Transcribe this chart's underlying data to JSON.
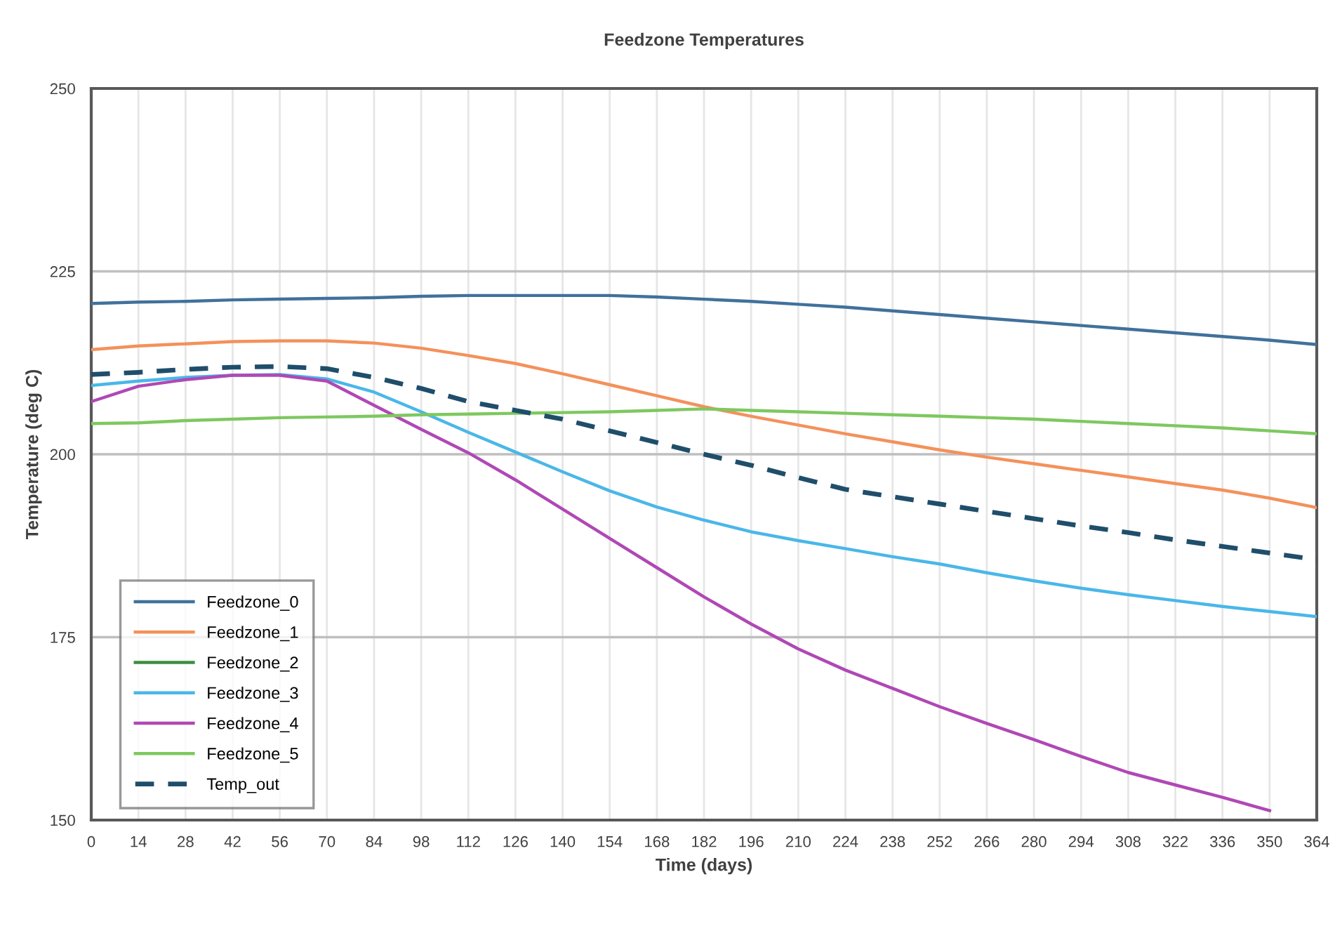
{
  "chart_data": {
    "type": "line",
    "title": "Feedzone Temperatures",
    "xlabel": "Time (days)",
    "ylabel": "Temperature (deg C)",
    "x": [
      0,
      14,
      28,
      42,
      56,
      70,
      84,
      98,
      112,
      126,
      140,
      154,
      168,
      182,
      196,
      210,
      224,
      238,
      252,
      266,
      280,
      294,
      308,
      322,
      336,
      350,
      364
    ],
    "xlim": [
      0,
      364
    ],
    "xticks": [
      0,
      14,
      28,
      42,
      56,
      70,
      84,
      98,
      112,
      126,
      140,
      154,
      168,
      182,
      196,
      210,
      224,
      238,
      252,
      266,
      280,
      294,
      308,
      322,
      336,
      350,
      364
    ],
    "ylim": [
      150,
      250
    ],
    "yticks": [
      150,
      175,
      200,
      225,
      250
    ],
    "grid": true,
    "legend": "bottom left",
    "marker": "none",
    "series": [
      {
        "name": "Feedzone_0",
        "color": "#41719c",
        "values": [
          220.6,
          220.8,
          220.9,
          221.1,
          221.2,
          221.3,
          221.4,
          221.6,
          221.7,
          221.7,
          221.7,
          221.7,
          221.5,
          221.2,
          220.9,
          220.5,
          220.1,
          219.6,
          219.1,
          218.6,
          218.1,
          217.6,
          217.1,
          216.6,
          216.1,
          215.6,
          215.0
        ]
      },
      {
        "name": "Feedzone_1",
        "color": "#f4915b",
        "values": [
          214.3,
          214.8,
          215.1,
          215.4,
          215.5,
          215.5,
          215.2,
          214.5,
          213.5,
          212.4,
          211.0,
          209.5,
          208.0,
          206.5,
          205.2,
          204.0,
          202.8,
          201.7,
          200.6,
          199.6,
          198.7,
          197.8,
          196.9,
          196.0,
          195.1,
          194.0,
          192.7
        ]
      },
      {
        "name": "Feedzone_2",
        "color": "#3e8e41",
        "values": [
          null,
          null,
          null,
          null,
          null,
          null,
          null,
          null,
          null,
          null,
          null,
          null,
          null,
          null,
          null,
          null,
          null,
          null,
          null,
          null,
          null,
          null,
          null,
          null,
          null,
          null,
          null
        ]
      },
      {
        "name": "Feedzone_3",
        "color": "#4ab7e8",
        "values": [
          209.4,
          210.0,
          210.5,
          210.8,
          210.9,
          210.3,
          208.5,
          205.8,
          203.0,
          200.3,
          197.6,
          195.0,
          192.8,
          191.0,
          189.4,
          188.2,
          187.1,
          186.0,
          185.0,
          183.8,
          182.7,
          181.7,
          180.8,
          180.0,
          179.2,
          178.5,
          177.8
        ]
      },
      {
        "name": "Feedzone_4",
        "color": "#b048b5",
        "values": [
          207.2,
          209.3,
          210.2,
          210.8,
          210.8,
          210.0,
          206.7,
          203.4,
          200.2,
          196.5,
          192.5,
          188.5,
          184.5,
          180.5,
          176.8,
          173.4,
          170.5,
          168.0,
          165.5,
          163.2,
          161.0,
          158.7,
          156.5,
          154.8,
          153.1,
          151.3,
          null
        ]
      },
      {
        "name": "Feedzone_5",
        "color": "#7ec860",
        "values": [
          204.2,
          204.3,
          204.6,
          204.8,
          205.0,
          205.1,
          205.2,
          205.4,
          205.5,
          205.6,
          205.7,
          205.8,
          206.0,
          206.2,
          206.0,
          205.8,
          205.6,
          205.4,
          205.2,
          205.0,
          204.8,
          204.5,
          204.2,
          203.9,
          203.6,
          203.2,
          202.8
        ]
      },
      {
        "name": "Temp_out",
        "color": "#1f4e6b",
        "line_style": "dashed",
        "values": [
          210.9,
          211.2,
          211.6,
          211.9,
          212.0,
          211.7,
          210.5,
          209.0,
          207.2,
          206.0,
          204.8,
          203.2,
          201.6,
          200.0,
          198.5,
          196.8,
          195.2,
          194.2,
          193.2,
          192.2,
          191.2,
          190.2,
          189.3,
          188.3,
          187.4,
          186.5,
          185.6
        ]
      }
    ]
  }
}
